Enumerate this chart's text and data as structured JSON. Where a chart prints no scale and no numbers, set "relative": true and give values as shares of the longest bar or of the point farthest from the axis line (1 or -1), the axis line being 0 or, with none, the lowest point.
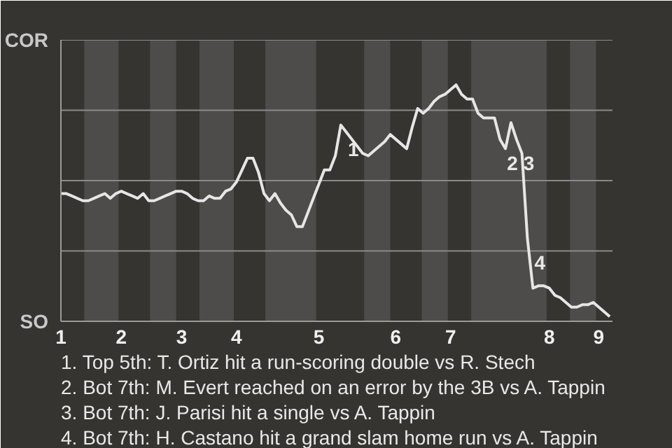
{
  "chart_data": {
    "type": "line",
    "color": "#e6e6e6",
    "relative": true,
    "categories": [
      "1",
      null,
      null,
      null,
      null,
      null,
      null,
      null,
      null,
      null,
      null,
      "2",
      null,
      null,
      null,
      null,
      null,
      null,
      null,
      null,
      null,
      null,
      "3",
      null,
      null,
      null,
      null,
      null,
      null,
      null,
      null,
      null,
      "4",
      null,
      null,
      null,
      null,
      null,
      null,
      null,
      null,
      null,
      null,
      null,
      null,
      null,
      null,
      "5",
      null,
      null,
      null,
      null,
      null,
      null,
      null,
      null,
      null,
      null,
      null,
      null,
      null,
      "6",
      null,
      null,
      null,
      null,
      null,
      null,
      null,
      null,
      null,
      "7",
      null,
      null,
      null,
      null,
      null,
      null,
      null,
      null,
      null,
      null,
      null,
      null,
      null,
      null,
      null,
      null,
      null,
      "8",
      null,
      null,
      null,
      null,
      null,
      null,
      null,
      null,
      "9",
      null,
      null
    ],
    "values": [
      0.54,
      0.54,
      0.53,
      0.52,
      0.51,
      0.51,
      0.52,
      0.53,
      0.54,
      0.52,
      0.54,
      0.55,
      0.54,
      0.53,
      0.52,
      0.54,
      0.51,
      0.51,
      0.52,
      0.53,
      0.54,
      0.55,
      0.55,
      0.54,
      0.52,
      0.51,
      0.51,
      0.53,
      0.52,
      0.52,
      0.55,
      0.56,
      0.59,
      0.64,
      0.69,
      0.69,
      0.63,
      0.54,
      0.51,
      0.54,
      0.5,
      0.47,
      0.45,
      0.4,
      0.4,
      0.46,
      0.52,
      0.58,
      0.64,
      0.64,
      0.7,
      0.83,
      0.8,
      0.77,
      0.74,
      0.71,
      0.7,
      0.72,
      0.74,
      0.76,
      0.79,
      0.77,
      0.75,
      0.73,
      0.82,
      0.9,
      0.88,
      0.9,
      0.93,
      0.95,
      0.96,
      0.98,
      1,
      0.96,
      0.94,
      0.94,
      0.88,
      0.86,
      0.86,
      0.86,
      0.77,
      0.73,
      0.84,
      0.77,
      0.71,
      0.35,
      0.14,
      0.15,
      0.15,
      0.14,
      0.11,
      0.1,
      0.08,
      0.06,
      0.06,
      0.07,
      0.07,
      0.08,
      0.06,
      0.04,
      0.02
    ],
    "grid": "y",
    "marker": "none",
    "line_style": "solid",
    "annotations": [
      "COR",
      "SO",
      "1",
      "2",
      "3",
      "4",
      "1. Top 5th: T. Ortiz hit a run-scoring double vs R. Stech",
      "2. Bot 7th: M. Evert reached on an error by the 3B vs A. Tappin",
      "3. Bot 7th: J. Parisi hit a single vs A. Tappin",
      "4. Bot 7th: H. Castano hit a grand slam home run vs A. Tappin"
    ]
  }
}
